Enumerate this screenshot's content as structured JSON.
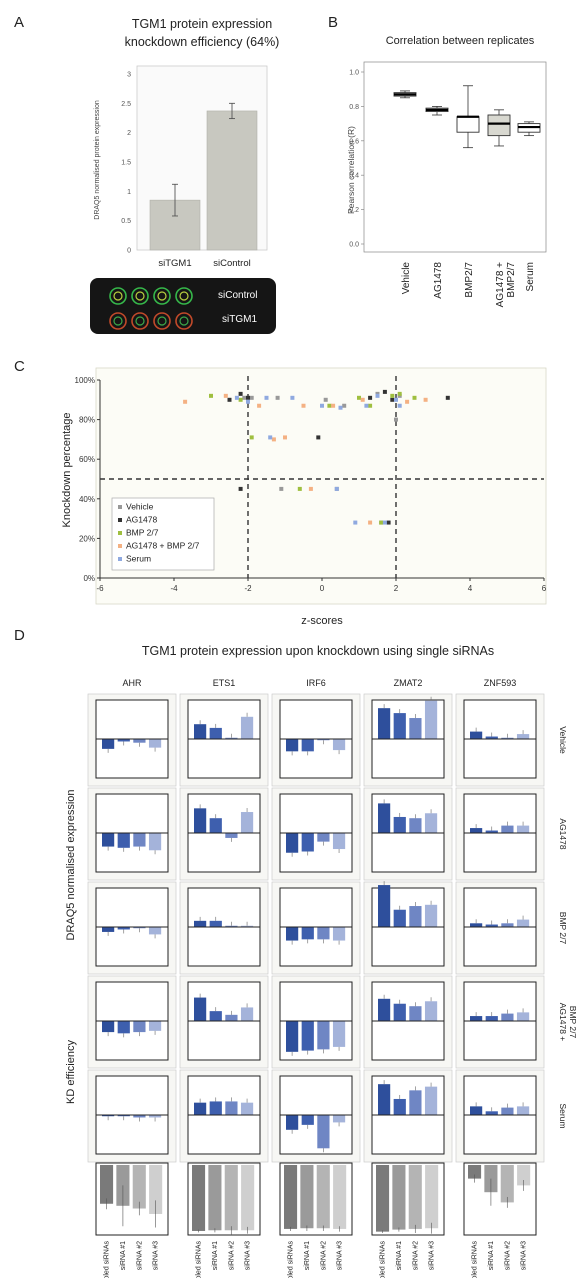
{
  "panels": {
    "a": "A",
    "b": "B",
    "c": "C",
    "d": "D"
  },
  "colors": {
    "vehicle": "#999999",
    "ag1478": "#333333",
    "bmp": "#9fbf3f",
    "agbmp": "#f4b183",
    "serum": "#8fa9e0",
    "pooled": "#2e4f9c",
    "sirna1": "#3e5fae",
    "sirna2": "#6f86c4",
    "sirna3": "#a4b3da"
  },
  "chart_data": [
    {
      "id": "A",
      "type": "bar",
      "title": "TGM1 protein expression knockdown efficiency (64%)",
      "title_lines": [
        "TGM1 protein expression",
        "knockdown efficiency (64%)"
      ],
      "ylabel": "DRAQ5 normalised protein expression",
      "ylim": [
        0,
        3
      ],
      "yticks": [
        "0",
        "0.5",
        "1",
        "1.5",
        "2",
        "2.5",
        "3"
      ],
      "categories": [
        "siTGM1",
        "siControl"
      ],
      "values": [
        0.85,
        2.37
      ],
      "errors": [
        0.27,
        0.13
      ],
      "inset_labels": [
        "siControl",
        "siTGM1"
      ]
    },
    {
      "id": "B",
      "type": "box",
      "title": "Correlation between replicates",
      "ylabel": "Pearson correlation (R)",
      "ylim": [
        0,
        1
      ],
      "yticks": [
        "0.0",
        "0.2",
        "0.4",
        "0.6",
        "0.8",
        "1.0"
      ],
      "categories": [
        "Vehicle",
        "AG1478",
        "BMP2/7",
        "AG1478 + BMP2/7",
        "Serum"
      ],
      "category_lines": [
        [
          "Vehicle"
        ],
        [
          "AG1478"
        ],
        [
          "BMP2/7"
        ],
        [
          "AG1478 +",
          "BMP2/7"
        ],
        [
          "Serum"
        ]
      ],
      "boxes": [
        {
          "min": 0.85,
          "q1": 0.86,
          "median": 0.87,
          "q3": 0.88,
          "max": 0.89
        },
        {
          "min": 0.75,
          "q1": 0.77,
          "median": 0.78,
          "q3": 0.79,
          "max": 0.8
        },
        {
          "min": 0.56,
          "q1": 0.65,
          "median": 0.74,
          "q3": 0.74,
          "max": 0.92
        },
        {
          "min": 0.57,
          "q1": 0.63,
          "median": 0.7,
          "q3": 0.75,
          "max": 0.78
        },
        {
          "min": 0.63,
          "q1": 0.65,
          "median": 0.68,
          "q3": 0.7,
          "max": 0.71
        }
      ]
    },
    {
      "id": "C",
      "type": "scatter",
      "xlabel": "z-scores",
      "ylabel": "Knockdown percentage",
      "xlim": [
        -6,
        6
      ],
      "ylim": [
        0,
        100
      ],
      "xticks": [
        "-6",
        "-4",
        "-2",
        "0",
        "2",
        "4",
        "6"
      ],
      "yticks": [
        "0%",
        "20%",
        "40%",
        "60%",
        "80%",
        "100%"
      ],
      "thresholds": {
        "x": [
          -2,
          2
        ],
        "y": 50
      },
      "legend": [
        "Vehicle",
        "AG1478",
        "BMP 2/7",
        "AG1478 + BMP 2/7",
        "Serum"
      ],
      "series": [
        {
          "name": "Vehicle",
          "points": [
            [
              -2.1,
              91
            ],
            [
              -1.2,
              91
            ],
            [
              0.1,
              90
            ],
            [
              0.6,
              87
            ],
            [
              1.5,
              93
            ],
            [
              2.1,
              92
            ],
            [
              -1.1,
              45
            ],
            [
              0.4,
              45
            ],
            [
              1.6,
              28
            ],
            [
              -1.9,
              91
            ],
            [
              2.0,
              80
            ]
          ]
        },
        {
          "name": "AG1478",
          "points": [
            [
              -2.5,
              90
            ],
            [
              -2.2,
              93
            ],
            [
              -0.1,
              71
            ],
            [
              1.3,
              91
            ],
            [
              1.7,
              94
            ],
            [
              3.4,
              91
            ],
            [
              -2.2,
              45
            ],
            [
              1.8,
              28
            ],
            [
              -2.0,
              91
            ],
            [
              1.9,
              90
            ]
          ]
        },
        {
          "name": "BMP 2/7",
          "points": [
            [
              -3.0,
              92
            ],
            [
              -2.2,
              90
            ],
            [
              -1.9,
              71
            ],
            [
              0.2,
              87
            ],
            [
              1.0,
              91
            ],
            [
              1.3,
              87
            ],
            [
              2.5,
              91
            ],
            [
              -0.6,
              45
            ],
            [
              1.6,
              28
            ],
            [
              1.9,
              92
            ],
            [
              2.1,
              93
            ]
          ]
        },
        {
          "name": "AG1478 + BMP 2/7",
          "points": [
            [
              -3.7,
              89
            ],
            [
              -2.6,
              92
            ],
            [
              -1.7,
              87
            ],
            [
              -1.0,
              71
            ],
            [
              -0.5,
              87
            ],
            [
              0.3,
              87
            ],
            [
              1.1,
              90
            ],
            [
              2.3,
              89
            ],
            [
              2.8,
              90
            ],
            [
              -0.3,
              45
            ],
            [
              1.3,
              28
            ],
            [
              -1.3,
              70
            ]
          ]
        },
        {
          "name": "Serum",
          "points": [
            [
              -2.3,
              91
            ],
            [
              -2.0,
              89
            ],
            [
              -1.4,
              71
            ],
            [
              -1.5,
              91
            ],
            [
              -0.8,
              91
            ],
            [
              0.0,
              87
            ],
            [
              0.5,
              86
            ],
            [
              1.2,
              87
            ],
            [
              2.0,
              90
            ],
            [
              0.4,
              45
            ],
            [
              1.7,
              28
            ],
            [
              0.9,
              28
            ],
            [
              1.5,
              92
            ],
            [
              2.1,
              87
            ]
          ]
        }
      ]
    },
    {
      "id": "D",
      "type": "bar-grid",
      "title": "TGM1 protein expression upon knockdown using single siRNAs",
      "ylabel": "DRAQ5 normalised expression",
      "kd_ylabel": "KD efficiency",
      "genes": [
        "AHR",
        "ETS1",
        "IRF6",
        "ZMAT2",
        "ZNF593"
      ],
      "conditions": [
        "Vehicle",
        "AG1478",
        "BMP 2/7",
        "AG1478 + BMP 2/7",
        "Serum"
      ],
      "condition_lines": [
        [
          "Vehicle"
        ],
        [
          "AG1478"
        ],
        [
          "BMP 2/7"
        ],
        [
          "AG1478 +",
          "BMP 2/7"
        ],
        [
          "Serum"
        ]
      ],
      "bar_categories": [
        "Pooled siRNAs",
        "siRNA #1",
        "siRNA #2",
        "siRNA #3"
      ],
      "ylim": [
        -3,
        3
      ],
      "values": [
        [
          [
            -0.8,
            -0.2,
            -0.3,
            -0.7
          ],
          [
            1.2,
            0.9,
            0.1,
            1.8
          ],
          [
            -1.0,
            -1.0,
            -0.1,
            -0.9
          ],
          [
            2.5,
            2.1,
            1.7,
            3.1
          ],
          [
            0.6,
            0.2,
            0.1,
            0.4
          ]
        ],
        [
          [
            -1.1,
            -1.2,
            -1.1,
            -1.4
          ],
          [
            2.0,
            1.2,
            -0.4,
            1.7
          ],
          [
            -1.6,
            -1.5,
            -0.7,
            -1.3
          ],
          [
            2.4,
            1.3,
            1.2,
            1.6
          ],
          [
            0.4,
            0.2,
            0.6,
            0.6
          ]
        ],
        [
          [
            -0.4,
            -0.2,
            -0.1,
            -0.6
          ],
          [
            0.5,
            0.5,
            0.1,
            0.1
          ],
          [
            -1.1,
            -1.0,
            -1.0,
            -1.1
          ],
          [
            3.4,
            1.4,
            1.7,
            1.8
          ],
          [
            0.3,
            0.2,
            0.3,
            0.6
          ]
        ],
        [
          [
            -0.9,
            -1.0,
            -0.9,
            -0.8
          ],
          [
            1.9,
            0.8,
            0.5,
            1.1
          ],
          [
            -2.5,
            -2.4,
            -2.3,
            -2.1
          ],
          [
            1.8,
            1.4,
            1.2,
            1.6
          ],
          [
            0.4,
            0.4,
            0.6,
            0.7
          ]
        ],
        [
          [
            -0.1,
            -0.1,
            -0.2,
            -0.2
          ],
          [
            1.0,
            1.1,
            1.1,
            1.0
          ],
          [
            -1.2,
            -0.8,
            -2.7,
            -0.6
          ],
          [
            2.5,
            1.3,
            2.0,
            2.3
          ],
          [
            0.7,
            0.3,
            0.6,
            0.7
          ]
        ]
      ],
      "kd_ylim": [
        0,
        100
      ],
      "kd_values": [
        [
          57,
          60,
          64,
          72
        ],
        [
          97,
          96,
          96,
          96
        ],
        [
          94,
          93,
          93,
          94
        ],
        [
          98,
          95,
          94,
          93
        ],
        [
          20,
          40,
          55,
          30
        ]
      ],
      "kd_errors": [
        [
          8,
          30,
          10,
          20
        ],
        [
          2,
          3,
          6,
          5
        ],
        [
          3,
          4,
          4,
          4
        ],
        [
          2,
          3,
          6,
          8
        ],
        [
          6,
          20,
          8,
          8
        ]
      ]
    }
  ]
}
